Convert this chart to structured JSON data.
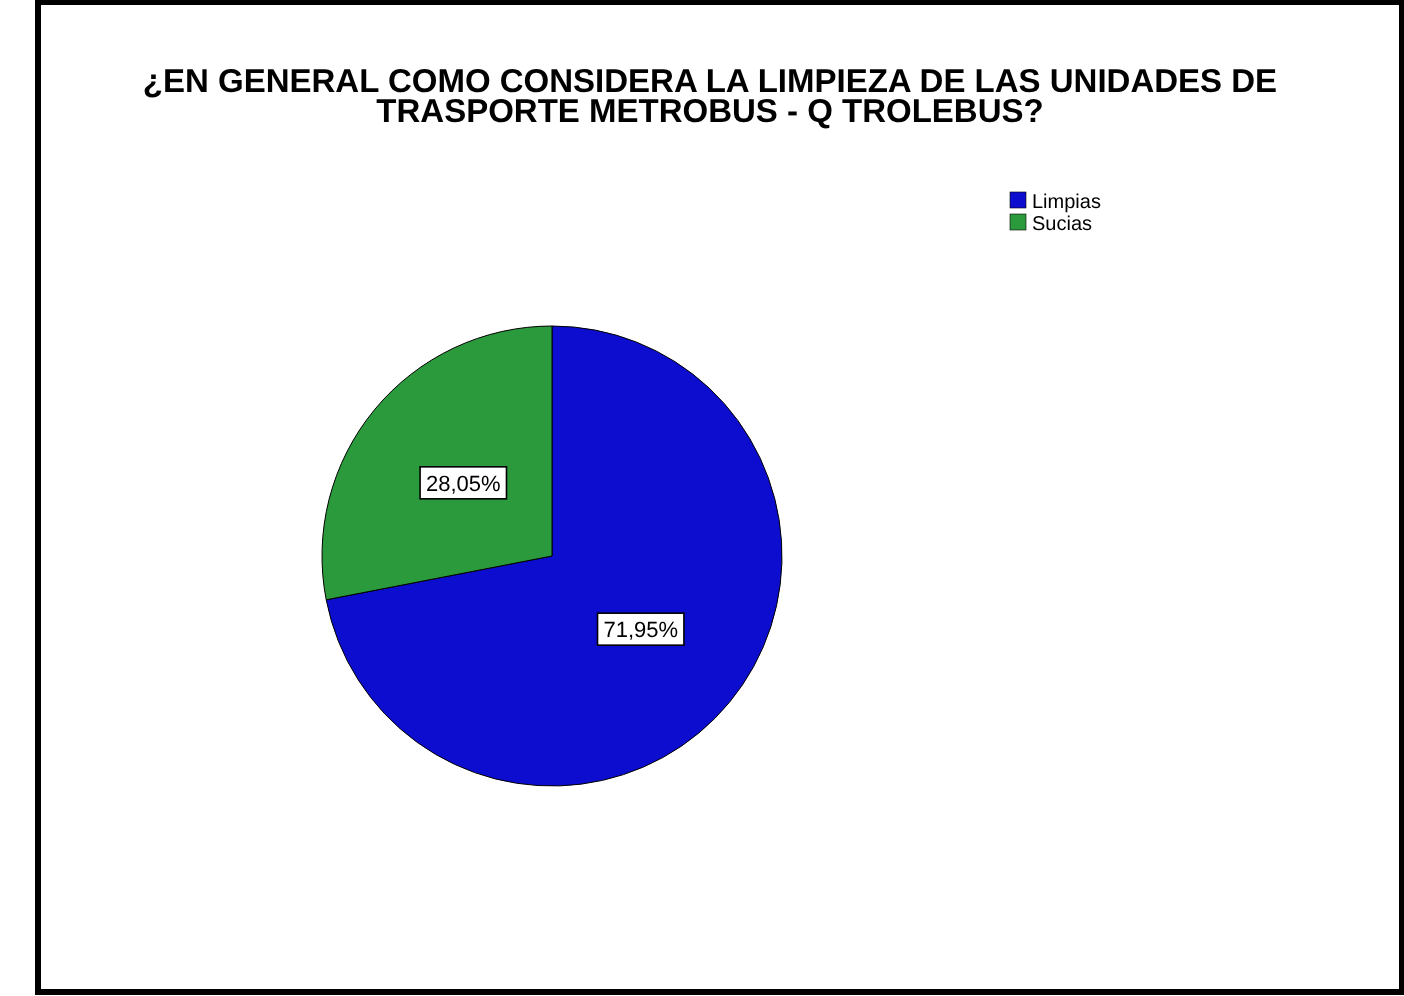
{
  "chart_data": {
    "type": "pie",
    "title": "¿EN GENERAL COMO CONSIDERA LA LIMPIEZA DE LAS UNIDADES DE TRASPORTE METROBUS - Q TROLEBUS?",
    "categories": [
      "Limpias",
      "Sucias"
    ],
    "values": [
      71.95,
      28.05
    ],
    "colors": [
      "#0d0dcf",
      "#2a9a3c"
    ],
    "value_labels": [
      "71,95%",
      "28,05%"
    ],
    "legend": "top right"
  }
}
